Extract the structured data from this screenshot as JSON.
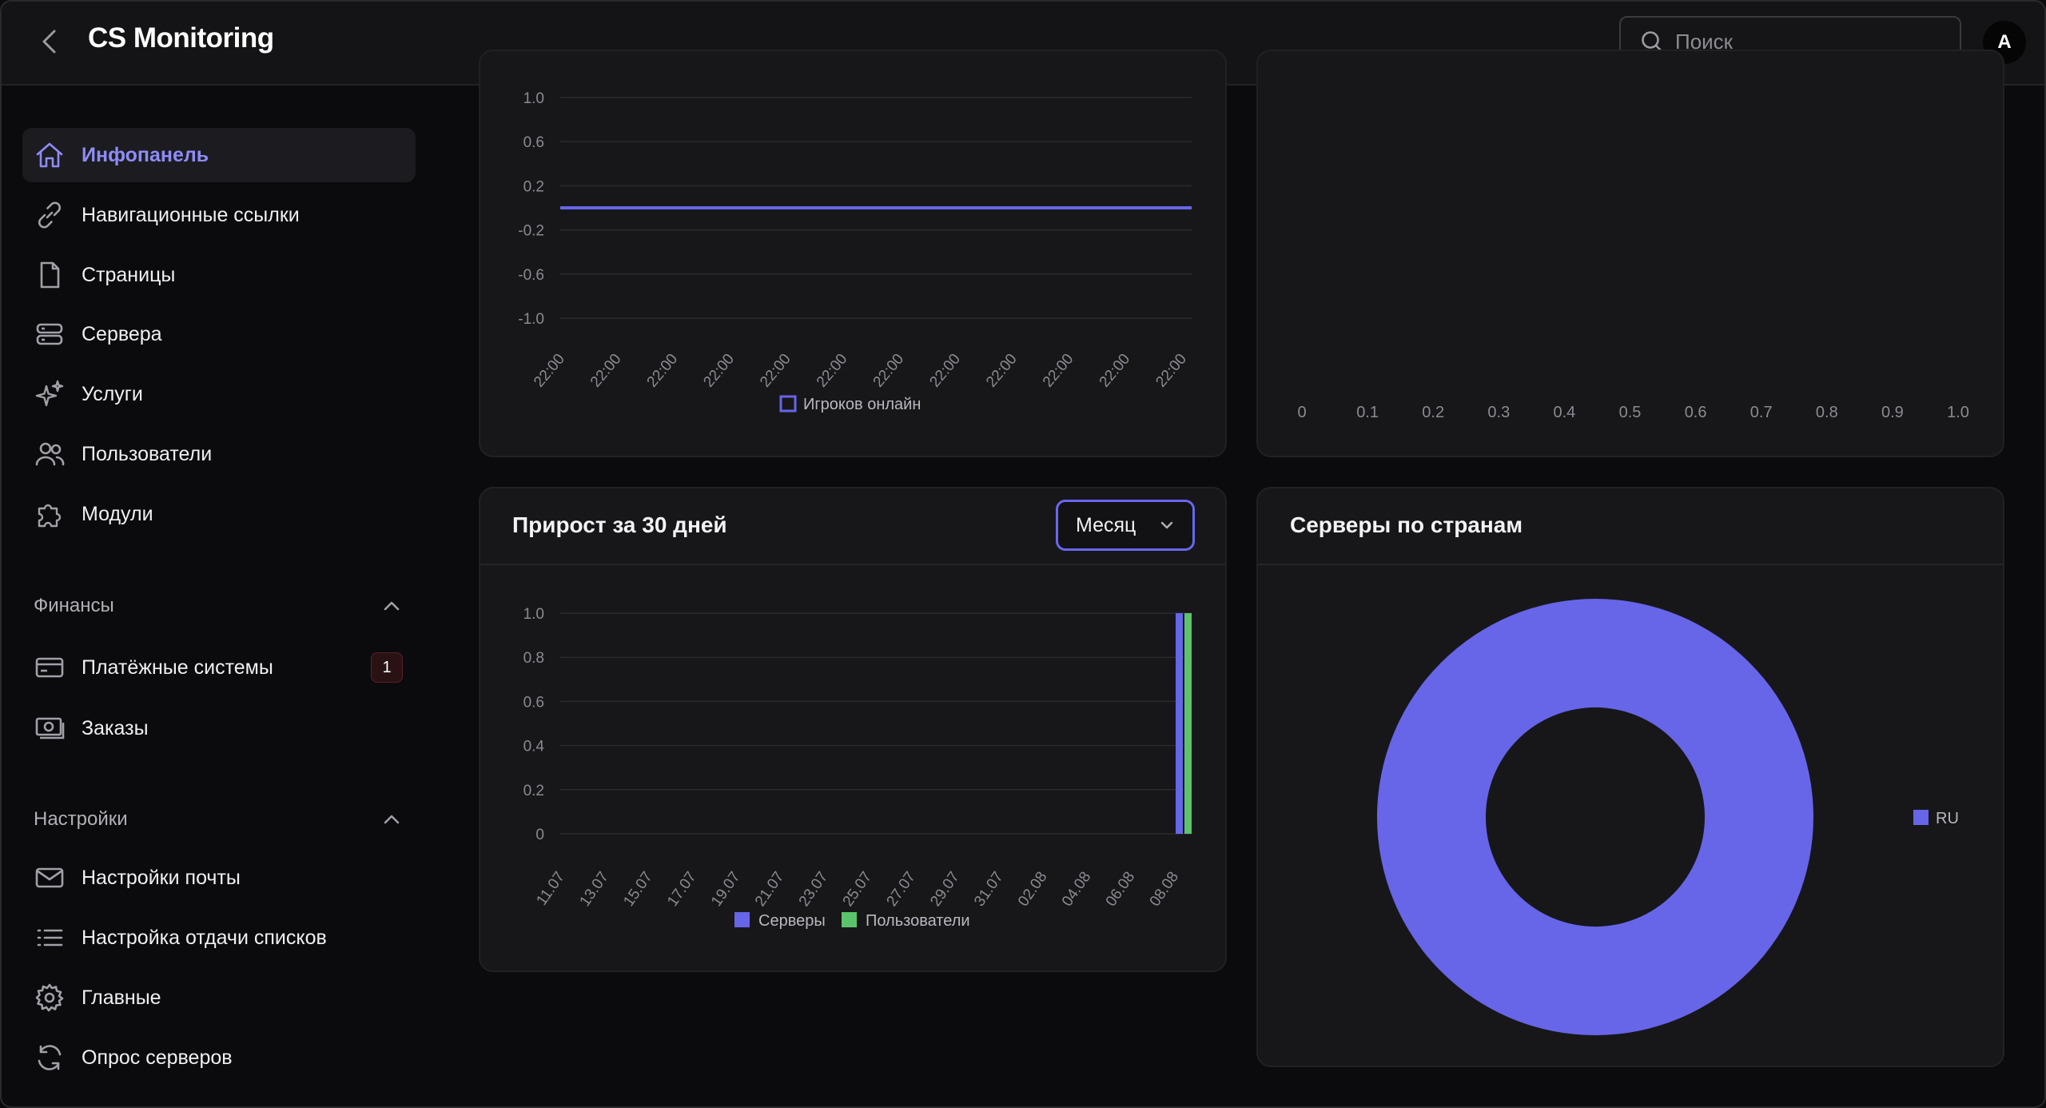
{
  "header": {
    "title": "CS Monitoring",
    "search_placeholder": "Поиск",
    "avatar_letter": "A"
  },
  "sidebar": {
    "main_items": [
      {
        "label": "Инфопанель",
        "icon": "home-icon",
        "active": true
      },
      {
        "label": "Навигационные ссылки",
        "icon": "link-icon"
      },
      {
        "label": "Страницы",
        "icon": "file-icon"
      },
      {
        "label": "Сервера",
        "icon": "server-icon"
      },
      {
        "label": "Услуги",
        "icon": "sparkles-icon"
      },
      {
        "label": "Пользователи",
        "icon": "users-icon"
      },
      {
        "label": "Модули",
        "icon": "puzzle-icon"
      }
    ],
    "finance": {
      "label": "Финансы",
      "items": [
        {
          "label": "Платёжные системы",
          "icon": "credit-card-icon",
          "badge": "1"
        },
        {
          "label": "Заказы",
          "icon": "cash-icon"
        }
      ]
    },
    "settings": {
      "label": "Настройки",
      "items": [
        {
          "label": "Настройки почты",
          "icon": "mail-icon"
        },
        {
          "label": "Настройка отдачи списков",
          "icon": "list-icon"
        },
        {
          "label": "Главные",
          "icon": "gear-icon"
        },
        {
          "label": "Опрос серверов",
          "icon": "refresh-icon"
        }
      ]
    }
  },
  "colors": {
    "accent": "#6765e8",
    "green": "#5bc46a",
    "active_text": "#8e8cf8"
  },
  "cards": {
    "growth": {
      "title": "Прирост за 30 дней",
      "select_value": "Месяц"
    },
    "countries": {
      "title": "Серверы по странам"
    }
  },
  "chart_data": [
    {
      "type": "line",
      "x": [
        "22:00",
        "22:00",
        "22:00",
        "22:00",
        "22:00",
        "22:00",
        "22:00",
        "22:00",
        "22:00",
        "22:00",
        "22:00",
        "22:00"
      ],
      "series": [
        {
          "name": "Игроков онлайн",
          "values": [
            0,
            0,
            0,
            0,
            0,
            0,
            0,
            0,
            0,
            0,
            0,
            0
          ]
        }
      ],
      "yticks": [
        "1.0",
        "0.6",
        "0.2",
        "-0.2",
        "-0.6",
        "-1.0"
      ],
      "ylim": [
        -1.0,
        1.0
      ]
    },
    {
      "type": "bar",
      "xticks": [
        "0",
        "0.1",
        "0.2",
        "0.3",
        "0.4",
        "0.5",
        "0.6",
        "0.7",
        "0.8",
        "0.9",
        "1.0"
      ],
      "xlim": [
        0,
        1.0
      ]
    },
    {
      "type": "bar",
      "categories": [
        "11.07",
        "13.07",
        "15.07",
        "17.07",
        "19.07",
        "21.07",
        "23.07",
        "25.07",
        "27.07",
        "29.07",
        "31.07",
        "02.08",
        "04.08",
        "06.08",
        "08.08"
      ],
      "series": [
        {
          "name": "Серверы",
          "values": [
            0,
            0,
            0,
            0,
            0,
            0,
            0,
            0,
            0,
            0,
            0,
            0,
            0,
            0,
            1
          ]
        },
        {
          "name": "Пользователи",
          "values": [
            0,
            0,
            0,
            0,
            0,
            0,
            0,
            0,
            0,
            0,
            0,
            0,
            0,
            0,
            1
          ]
        }
      ],
      "yticks": [
        "1.0",
        "0.8",
        "0.6",
        "0.4",
        "0.2",
        "0"
      ],
      "ylim": [
        0,
        1.0
      ]
    },
    {
      "type": "pie",
      "labels": [
        "RU"
      ],
      "values": [
        1
      ]
    }
  ]
}
